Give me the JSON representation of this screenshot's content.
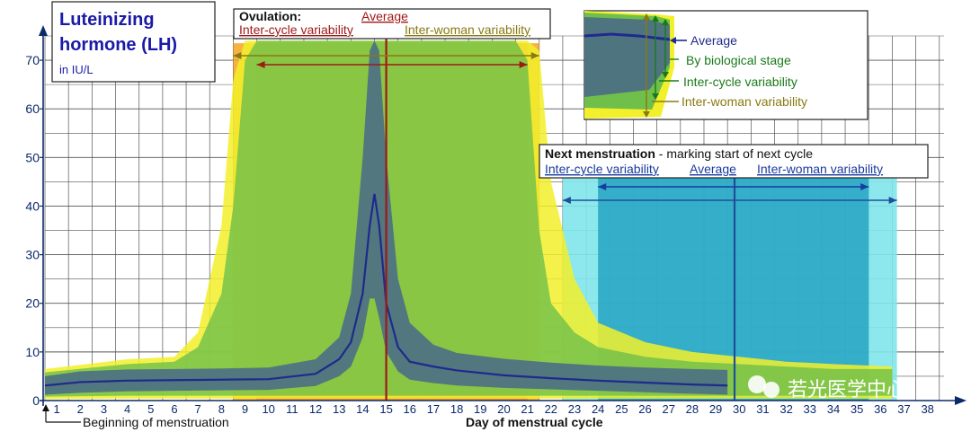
{
  "chart_data": {
    "type": "area",
    "title": "Luteinizing hormone (LH)",
    "title_line1": "Luteinizing",
    "title_line2": "hormone (LH)",
    "unit": "in IU/L",
    "xlabel": "Day of menstrual cycle",
    "x_start_label": "Beginning of menstruation",
    "ylim": [
      0,
      75
    ],
    "xlim": [
      0.5,
      38.7
    ],
    "yticks": [
      0,
      10,
      20,
      30,
      40,
      50,
      60,
      70
    ],
    "xticks": [
      1,
      2,
      3,
      4,
      5,
      6,
      7,
      8,
      9,
      10,
      11,
      12,
      13,
      14,
      15,
      16,
      17,
      18,
      19,
      20,
      21,
      22,
      23,
      24,
      25,
      26,
      27,
      28,
      29,
      30,
      31,
      32,
      33,
      34,
      35,
      36,
      37,
      38
    ],
    "grid": true,
    "series": [
      {
        "name": "Average",
        "x": [
          0.5,
          2,
          4,
          6,
          8,
          10,
          12,
          13,
          13.5,
          14,
          14.3,
          14.5,
          14.7,
          15,
          15.5,
          16,
          17,
          18,
          20,
          22,
          24,
          26,
          28,
          29.5
        ],
        "y": [
          3.1,
          3.8,
          4.1,
          4.2,
          4.3,
          4.4,
          5.5,
          8.5,
          12,
          22,
          36,
          42.5,
          36,
          20,
          11,
          8,
          7,
          6.2,
          5.2,
          4.6,
          4.1,
          3.7,
          3.3,
          3.1
        ]
      },
      {
        "name": "By biological stage",
        "lower": [
          1.2,
          1.6,
          1.9,
          2.0,
          2.1,
          2.2,
          3.0,
          5,
          7,
          13,
          21,
          21,
          17,
          10,
          6,
          4.3,
          3.6,
          3.1,
          2.6,
          2.3,
          2.0,
          1.7,
          1.4,
          1.2
        ],
        "upper": [
          5.0,
          6.0,
          6.4,
          6.5,
          6.6,
          6.8,
          8.5,
          13,
          22,
          50,
          72,
          74,
          72,
          50,
          25,
          16,
          11.5,
          9.8,
          8.6,
          7.8,
          7.2,
          6.8,
          6.5,
          6.3
        ]
      },
      {
        "name": "Inter-cycle variability",
        "x": [
          0.5,
          4,
          6,
          7,
          8,
          8.5,
          9,
          9.5,
          20.5,
          21,
          21.5,
          22,
          23,
          24,
          26,
          28,
          30,
          32,
          34,
          36.5
        ],
        "lower": [
          0.8,
          1.0,
          1.0,
          1.0,
          1.0,
          1.0,
          1.0,
          1.0,
          1.0,
          1.0,
          1.0,
          1.0,
          1.0,
          1.0,
          1.0,
          1.0,
          1.0,
          1.0,
          1.0,
          1.0
        ],
        "upper": [
          5.8,
          7.5,
          8,
          11,
          22,
          40,
          70,
          74,
          74,
          70,
          35,
          20,
          14,
          11,
          9,
          8,
          7.5,
          7,
          6.5,
          6.5
        ]
      },
      {
        "name": "Inter-woman variability",
        "x": [
          0.5,
          4,
          6,
          7,
          8,
          8.5,
          9,
          21,
          21.5,
          22,
          23,
          24,
          26,
          28,
          30,
          32,
          34,
          36.5
        ],
        "lower": [
          0.3,
          0.4,
          0.4,
          0.4,
          0.4,
          0.4,
          0.4,
          0.4,
          0.4,
          0.4,
          0.4,
          0.4,
          0.4,
          0.4,
          0.4,
          0.4,
          0.4,
          0.4
        ],
        "upper": [
          6.5,
          8.5,
          9,
          14,
          36,
          66,
          74,
          74,
          72,
          45,
          25,
          16,
          12,
          10,
          9,
          8,
          7.5,
          7
        ]
      }
    ],
    "ovulation": {
      "label": "Ovulation:",
      "average_label": "Average",
      "average_day": 15,
      "inter_cycle_label": "Inter-cycle variability",
      "inter_woman_label": "Inter-woman variability",
      "inter_cycle_range": [
        9.5,
        21
      ],
      "inter_woman_range": [
        8.5,
        21.5
      ]
    },
    "next_menstruation": {
      "label": "Next menstruation",
      "label_suffix": " - marking start of next cycle",
      "average_label": "Average",
      "average_day": 29.8,
      "inter_cycle_label": "Inter-cycle variability",
      "inter_woman_label": "Inter-woman variability",
      "inter_cycle_range": [
        24,
        35.5
      ],
      "inter_woman_range": [
        22.5,
        36.7
      ]
    },
    "legend": {
      "average": "Average",
      "biological": "By biological stage",
      "inter_cycle": "Inter-cycle variability",
      "inter_woman": "Inter-woman variability"
    },
    "colors": {
      "average_line": "#1f2a8c",
      "biological_band": "#4a6c86",
      "inter_cycle_band": "#6fbf4a",
      "inter_woman_band": "#f2f02a",
      "ovulation_inter_woman": "#f5a623",
      "ovulation_inter_cycle": "#e8843a",
      "ovulation_line": "#a01818",
      "menstruation_inter_woman": "#7fe6ea",
      "menstruation_inter_cycle": "#1f9fc0",
      "menstruation_line": "#1f4f9a",
      "ovulation_text": "#a01818",
      "inter_woman_text": "#8a7a12",
      "menstruation_text": "#1a3aa0",
      "legend_text": "#1a7a1a"
    }
  },
  "watermark": "若光医学中心"
}
